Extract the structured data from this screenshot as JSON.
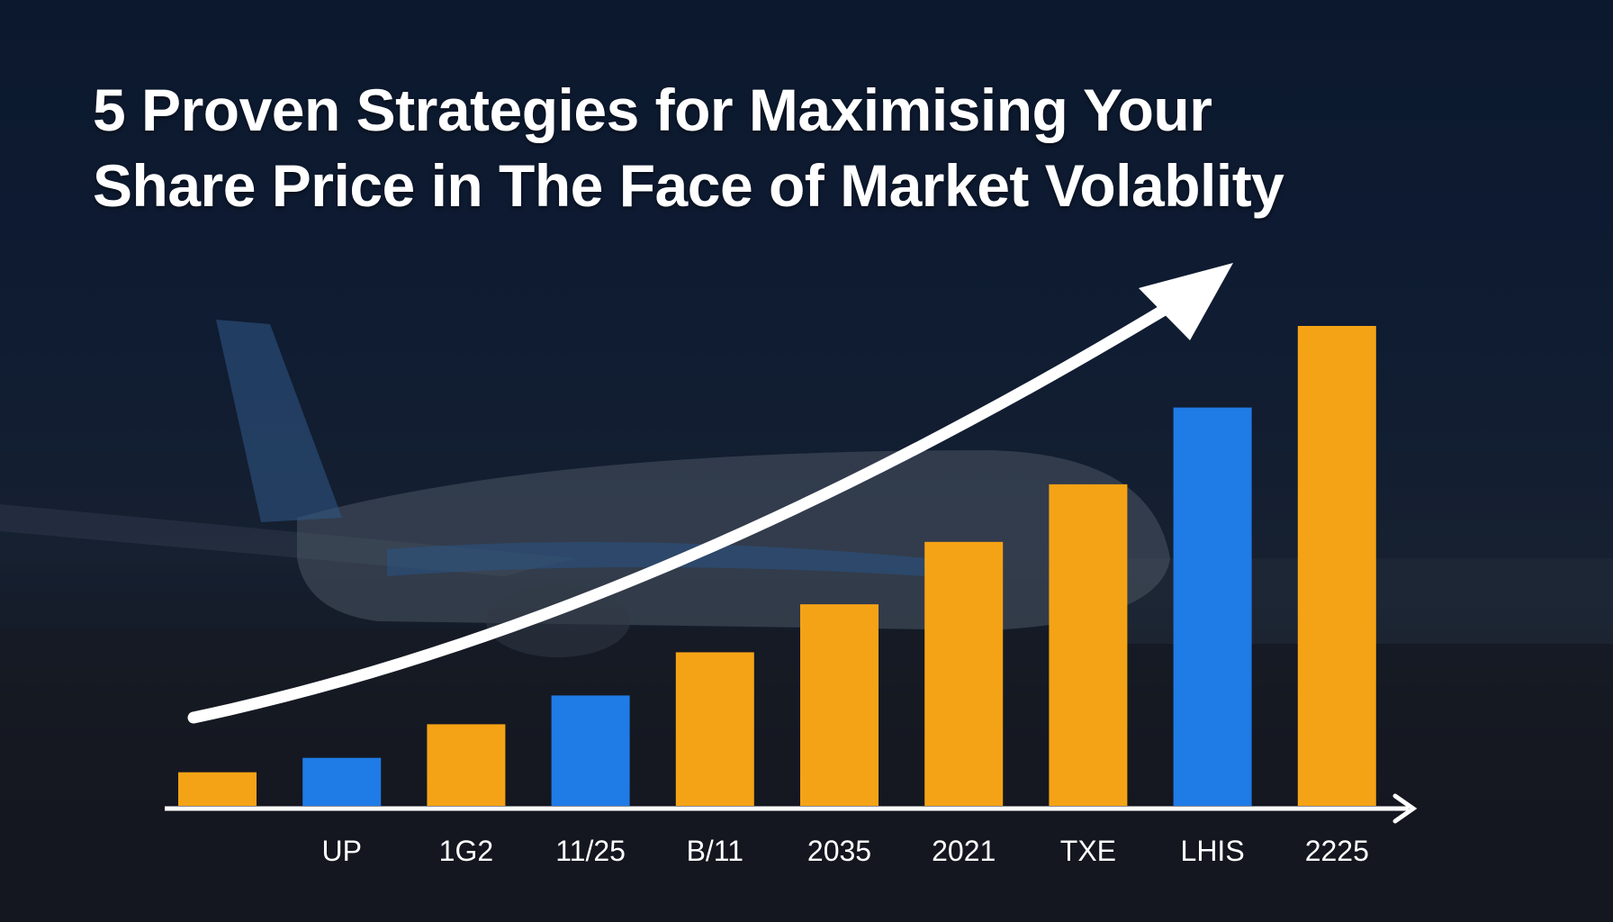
{
  "title": {
    "line1": "5 Proven Strategies for Maximising Your",
    "line2": "Share Price in The Face of Market Volablity"
  },
  "chart_data": {
    "type": "bar",
    "title": "5 Proven Strategies for Maximising Your Share Price in The Face of Market Volablity",
    "categories": [
      "",
      "UP",
      "1G2",
      "11/25",
      "B/11",
      "2035",
      "2021",
      "TXE",
      "LHIS",
      "2225"
    ],
    "values": [
      7,
      10,
      17,
      23,
      32,
      42,
      55,
      67,
      83,
      100
    ],
    "bar_colors": [
      "#F5A316",
      "#1F7BE6",
      "#F5A316",
      "#1F7BE6",
      "#F5A316",
      "#F5A316",
      "#F5A316",
      "#F5A316",
      "#1F7BE6",
      "#F5A316"
    ],
    "ylim": [
      0,
      100
    ],
    "xlabel": "",
    "ylabel": "",
    "grid": false,
    "y_axis_shown": false,
    "annotations": [
      "upward-trend-arrow"
    ]
  },
  "colors": {
    "orange": "#F5A316",
    "blue": "#1F7BE6",
    "background": "#0f1d33",
    "text": "#ffffff"
  }
}
